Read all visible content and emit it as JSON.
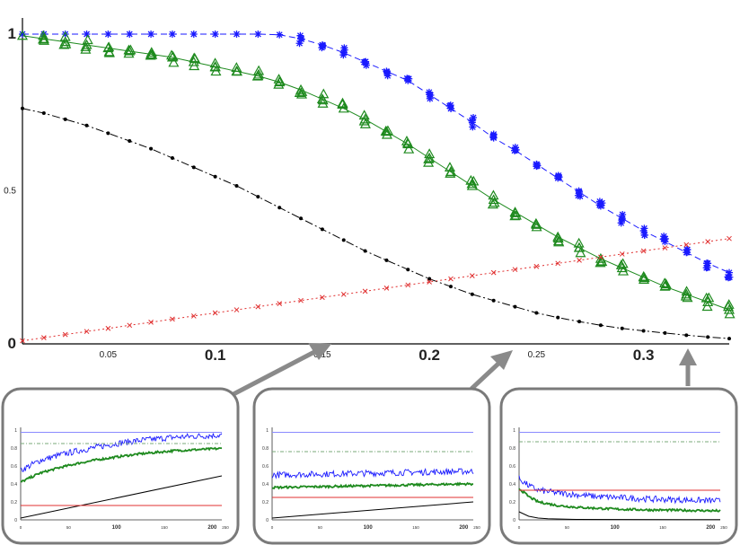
{
  "chart_data": [
    {
      "type": "line",
      "xlim": [
        0.01,
        0.34
      ],
      "ylim": [
        0,
        1
      ],
      "x_ticks": [
        {
          "value": 0.05,
          "label": "0.05",
          "size": "small"
        },
        {
          "value": 0.1,
          "label": "0.1",
          "size": "large"
        },
        {
          "value": 0.15,
          "label": "0.15",
          "size": "small"
        },
        {
          "value": 0.2,
          "label": "0.2",
          "size": "large"
        },
        {
          "value": 0.25,
          "label": "0.25",
          "size": "small"
        },
        {
          "value": 0.3,
          "label": "0.3",
          "size": "large"
        }
      ],
      "y_ticks": [
        {
          "value": 0,
          "label": "0",
          "size": "large"
        },
        {
          "value": 0.5,
          "label": "0.5",
          "size": "small"
        },
        {
          "value": 1,
          "label": "1",
          "size": "large"
        }
      ],
      "grid": false,
      "series": [
        {
          "marker": "star",
          "line": "dashed",
          "color": "#1a1aff",
          "x": [
            0.01,
            0.02,
            0.03,
            0.04,
            0.05,
            0.06,
            0.07,
            0.08,
            0.09,
            0.1,
            0.11,
            0.12,
            0.13,
            0.14,
            0.15,
            0.16,
            0.17,
            0.18,
            0.19,
            0.2,
            0.21,
            0.22,
            0.23,
            0.24,
            0.25,
            0.26,
            0.27,
            0.28,
            0.29,
            0.3,
            0.31,
            0.32,
            0.33,
            0.34
          ],
          "y": [
            1,
            1,
            1,
            1,
            1,
            1,
            1,
            1,
            1,
            1,
            1,
            1,
            0.998,
            0.985,
            0.965,
            0.94,
            0.91,
            0.88,
            0.85,
            0.805,
            0.76,
            0.715,
            0.665,
            0.625,
            0.58,
            0.535,
            0.49,
            0.445,
            0.405,
            0.365,
            0.33,
            0.295,
            0.26,
            0.23
          ]
        },
        {
          "marker": "triangle",
          "line": "solid",
          "color": "#1e8a1e",
          "x": [
            0.01,
            0.02,
            0.03,
            0.04,
            0.05,
            0.06,
            0.07,
            0.08,
            0.09,
            0.1,
            0.11,
            0.12,
            0.13,
            0.14,
            0.15,
            0.16,
            0.17,
            0.18,
            0.19,
            0.2,
            0.21,
            0.22,
            0.23,
            0.24,
            0.25,
            0.26,
            0.27,
            0.28,
            0.29,
            0.3,
            0.31,
            0.32,
            0.33,
            0.34
          ],
          "y": [
            0.995,
            0.985,
            0.975,
            0.965,
            0.955,
            0.945,
            0.935,
            0.925,
            0.91,
            0.895,
            0.88,
            0.865,
            0.845,
            0.82,
            0.79,
            0.76,
            0.725,
            0.685,
            0.645,
            0.6,
            0.555,
            0.51,
            0.465,
            0.425,
            0.385,
            0.345,
            0.31,
            0.275,
            0.245,
            0.215,
            0.185,
            0.16,
            0.135,
            0.11
          ]
        },
        {
          "marker": "dot",
          "line": "dashdot",
          "color": "#000000",
          "x": [
            0.01,
            0.02,
            0.03,
            0.04,
            0.05,
            0.06,
            0.07,
            0.08,
            0.09,
            0.1,
            0.11,
            0.12,
            0.13,
            0.14,
            0.15,
            0.16,
            0.17,
            0.18,
            0.19,
            0.2,
            0.21,
            0.22,
            0.23,
            0.24,
            0.25,
            0.26,
            0.27,
            0.28,
            0.29,
            0.3,
            0.31,
            0.32,
            0.33,
            0.34
          ],
          "y": [
            0.76,
            0.745,
            0.725,
            0.705,
            0.68,
            0.655,
            0.63,
            0.6,
            0.57,
            0.54,
            0.51,
            0.475,
            0.44,
            0.405,
            0.37,
            0.335,
            0.3,
            0.27,
            0.24,
            0.21,
            0.185,
            0.16,
            0.14,
            0.12,
            0.1,
            0.085,
            0.072,
            0.06,
            0.05,
            0.042,
            0.035,
            0.028,
            0.022,
            0.017
          ]
        },
        {
          "marker": "x",
          "line": "dotted",
          "color": "#e03030",
          "x": [
            0.01,
            0.02,
            0.03,
            0.04,
            0.05,
            0.06,
            0.07,
            0.08,
            0.09,
            0.1,
            0.11,
            0.12,
            0.13,
            0.14,
            0.15,
            0.16,
            0.17,
            0.18,
            0.19,
            0.2,
            0.21,
            0.22,
            0.23,
            0.24,
            0.25,
            0.26,
            0.27,
            0.28,
            0.29,
            0.3,
            0.31,
            0.32,
            0.33,
            0.34
          ],
          "y": [
            0.01,
            0.02,
            0.03,
            0.04,
            0.05,
            0.06,
            0.07,
            0.08,
            0.09,
            0.1,
            0.11,
            0.12,
            0.13,
            0.14,
            0.15,
            0.16,
            0.17,
            0.18,
            0.19,
            0.2,
            0.21,
            0.22,
            0.23,
            0.24,
            0.25,
            0.26,
            0.27,
            0.28,
            0.29,
            0.3,
            0.31,
            0.32,
            0.33,
            0.34
          ]
        }
      ]
    },
    {
      "type": "line",
      "xlim": [
        0,
        210
      ],
      "ylim": [
        0,
        1
      ],
      "x_ticks": [
        {
          "value": 0,
          "label": "0"
        },
        {
          "value": 50,
          "label": "50"
        },
        {
          "value": 100,
          "label": "100"
        },
        {
          "value": 150,
          "label": "150"
        },
        {
          "value": 200,
          "label": "200"
        },
        {
          "value": 250,
          "label": "250"
        }
      ],
      "y_ticks": [
        {
          "value": 0,
          "label": "0"
        },
        {
          "value": 0.2,
          "label": "0.2"
        },
        {
          "value": 0.4,
          "label": "0.4"
        },
        {
          "value": 0.6,
          "label": "0.6"
        },
        {
          "value": 0.8,
          "label": "0.8"
        },
        {
          "value": 1,
          "label": "1"
        }
      ],
      "series": [
        {
          "color": "#1a1aff",
          "style": "noisy",
          "x": [
            0,
            20,
            40,
            60,
            80,
            100,
            120,
            140,
            160,
            180,
            200,
            210
          ],
          "y": [
            0.55,
            0.66,
            0.72,
            0.77,
            0.81,
            0.85,
            0.88,
            0.9,
            0.92,
            0.93,
            0.94,
            0.945
          ]
        },
        {
          "color": "#1e8a1e",
          "style": "noisy",
          "x": [
            0,
            20,
            40,
            60,
            80,
            100,
            120,
            140,
            160,
            180,
            200,
            210
          ],
          "y": [
            0.42,
            0.52,
            0.58,
            0.63,
            0.67,
            0.7,
            0.73,
            0.75,
            0.77,
            0.78,
            0.79,
            0.795
          ]
        },
        {
          "color": "#000000",
          "style": "solid",
          "x": [
            0,
            210
          ],
          "y": [
            0.02,
            0.49
          ]
        },
        {
          "color": "#e03030",
          "style": "solid",
          "x": [
            0,
            210
          ],
          "y": [
            0.16,
            0.16
          ]
        },
        {
          "color": "#8a8aff",
          "style": "solid",
          "x": [
            0,
            210
          ],
          "y": [
            0.975,
            0.975
          ]
        },
        {
          "color": "#7aaa7a",
          "style": "dashdot",
          "x": [
            0,
            210
          ],
          "y": [
            0.85,
            0.85
          ]
        }
      ]
    },
    {
      "type": "line",
      "xlim": [
        0,
        210
      ],
      "ylim": [
        0,
        1
      ],
      "x_ticks": [
        {
          "value": 0,
          "label": "0"
        },
        {
          "value": 50,
          "label": "50"
        },
        {
          "value": 100,
          "label": "100"
        },
        {
          "value": 150,
          "label": "150"
        },
        {
          "value": 200,
          "label": "200"
        },
        {
          "value": 250,
          "label": "250"
        }
      ],
      "y_ticks": [
        {
          "value": 0,
          "label": "0"
        },
        {
          "value": 0.2,
          "label": "0.2"
        },
        {
          "value": 0.4,
          "label": "0.4"
        },
        {
          "value": 0.6,
          "label": "0.6"
        },
        {
          "value": 0.8,
          "label": "0.8"
        },
        {
          "value": 1,
          "label": "1"
        }
      ],
      "series": [
        {
          "color": "#1a1aff",
          "style": "noisy",
          "x": [
            0,
            50,
            100,
            150,
            200,
            210
          ],
          "y": [
            0.5,
            0.51,
            0.52,
            0.53,
            0.54,
            0.54
          ]
        },
        {
          "color": "#1e8a1e",
          "style": "noisy",
          "x": [
            0,
            50,
            100,
            150,
            200,
            210
          ],
          "y": [
            0.36,
            0.37,
            0.38,
            0.39,
            0.4,
            0.4
          ]
        },
        {
          "color": "#000000",
          "style": "solid",
          "x": [
            0,
            210
          ],
          "y": [
            0.02,
            0.2
          ]
        },
        {
          "color": "#e03030",
          "style": "solid",
          "x": [
            0,
            210
          ],
          "y": [
            0.25,
            0.25
          ]
        },
        {
          "color": "#8a8aff",
          "style": "solid",
          "x": [
            0,
            210
          ],
          "y": [
            0.975,
            0.975
          ]
        },
        {
          "color": "#7aaa7a",
          "style": "dashdot",
          "x": [
            0,
            210
          ],
          "y": [
            0.76,
            0.76
          ]
        }
      ]
    },
    {
      "type": "line",
      "xlim": [
        0,
        210
      ],
      "ylim": [
        0,
        1
      ],
      "x_ticks": [
        {
          "value": 0,
          "label": "0"
        },
        {
          "value": 50,
          "label": "50"
        },
        {
          "value": 100,
          "label": "100"
        },
        {
          "value": 150,
          "label": "150"
        },
        {
          "value": 200,
          "label": "200"
        },
        {
          "value": 250,
          "label": "250"
        }
      ],
      "y_ticks": [
        {
          "value": 0,
          "label": "0"
        },
        {
          "value": 0.2,
          "label": "0.2"
        },
        {
          "value": 0.4,
          "label": "0.4"
        },
        {
          "value": 0.6,
          "label": "0.6"
        },
        {
          "value": 0.8,
          "label": "0.8"
        },
        {
          "value": 1,
          "label": "1"
        }
      ],
      "series": [
        {
          "color": "#1a1aff",
          "style": "noisy",
          "x": [
            0,
            10,
            20,
            40,
            60,
            80,
            100,
            140,
            180,
            210
          ],
          "y": [
            0.46,
            0.38,
            0.33,
            0.3,
            0.28,
            0.26,
            0.25,
            0.23,
            0.22,
            0.21
          ]
        },
        {
          "color": "#1e8a1e",
          "style": "noisy",
          "x": [
            0,
            10,
            20,
            40,
            60,
            80,
            100,
            140,
            180,
            210
          ],
          "y": [
            0.35,
            0.26,
            0.2,
            0.16,
            0.14,
            0.13,
            0.12,
            0.11,
            0.105,
            0.1
          ]
        },
        {
          "color": "#000000",
          "style": "solid",
          "x": [
            0,
            10,
            20,
            30,
            60,
            210
          ],
          "y": [
            0.09,
            0.04,
            0.02,
            0.012,
            0.005,
            0.002
          ]
        },
        {
          "color": "#e03030",
          "style": "solid",
          "x": [
            0,
            210
          ],
          "y": [
            0.33,
            0.33
          ]
        },
        {
          "color": "#8a8aff",
          "style": "solid",
          "x": [
            0,
            210
          ],
          "y": [
            0.975,
            0.975
          ]
        },
        {
          "color": "#7aaa7a",
          "style": "dashdot",
          "x": [
            0,
            210
          ],
          "y": [
            0.87,
            0.87
          ]
        }
      ]
    }
  ]
}
